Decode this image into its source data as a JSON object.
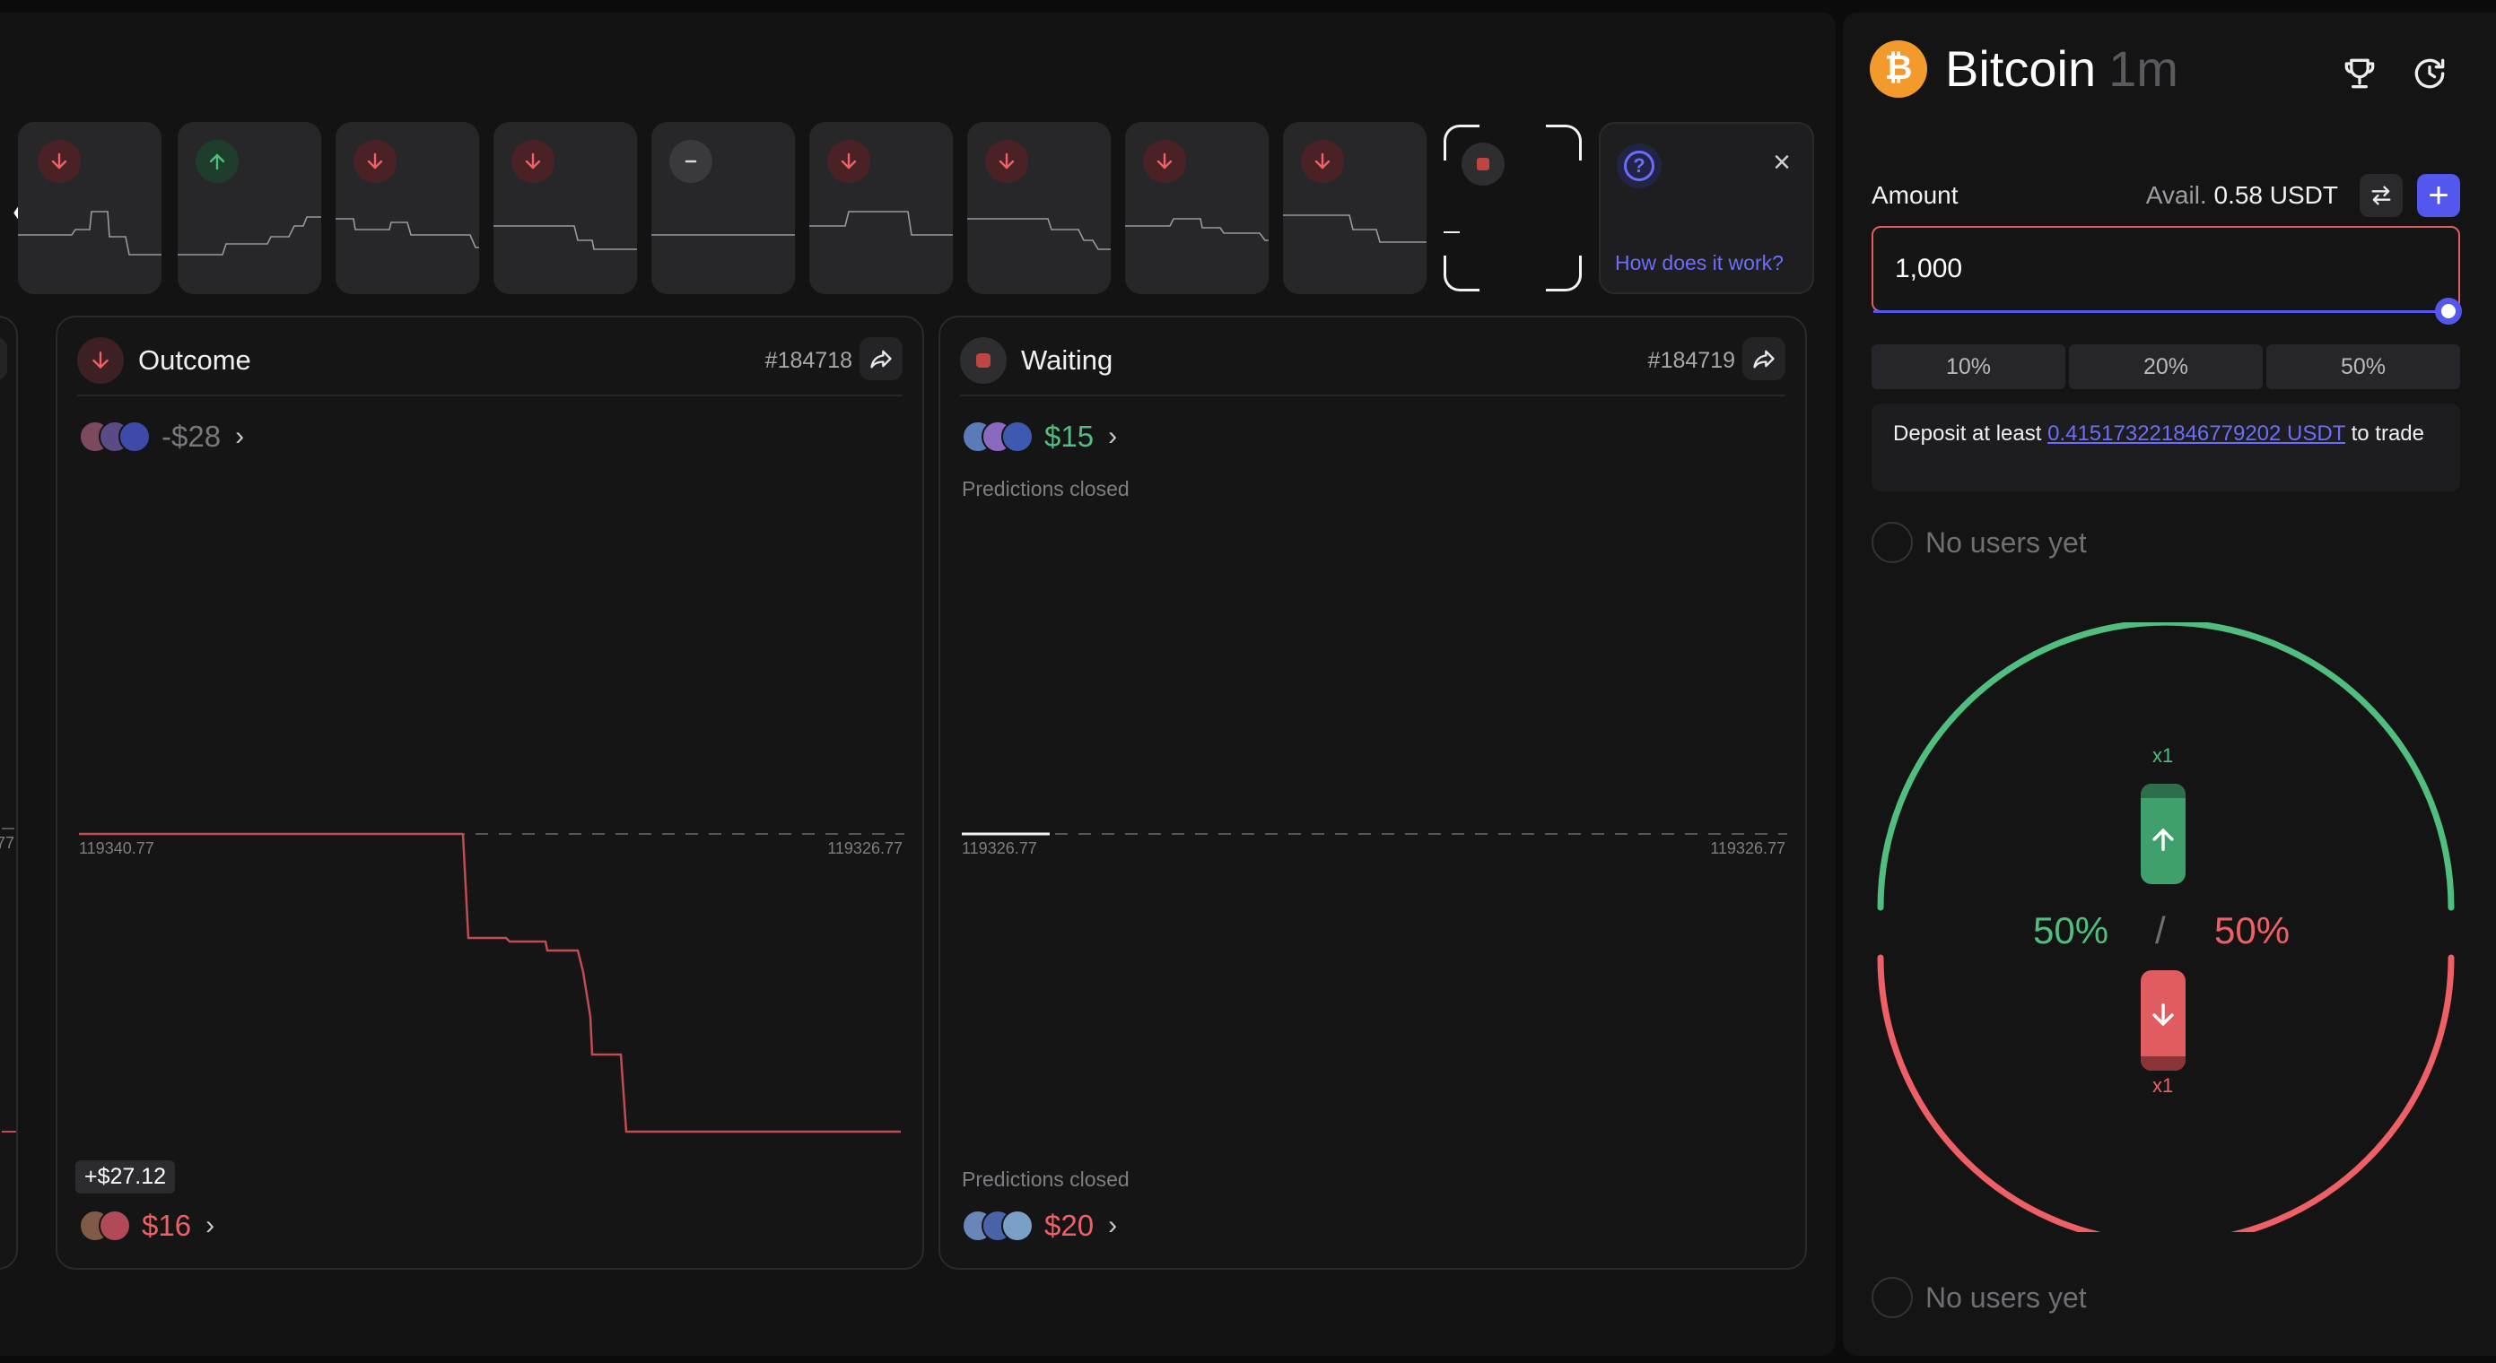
{
  "history": {
    "cards": [
      {
        "direction": "down",
        "color": "#ef5f66"
      },
      {
        "direction": "up",
        "color": "#4fbe7f"
      },
      {
        "direction": "down",
        "color": "#ef5f66"
      },
      {
        "direction": "down",
        "color": "#ef5f66"
      },
      {
        "direction": "flat",
        "color": "#d9d9dc"
      },
      {
        "direction": "down",
        "color": "#ef5f66"
      },
      {
        "direction": "down",
        "color": "#ef5f66"
      },
      {
        "direction": "down",
        "color": "#ef5f66"
      },
      {
        "direction": "down",
        "color": "#ef5f66"
      },
      {
        "direction": "current",
        "color": "#c04444"
      }
    ],
    "help_link": "How does it work?"
  },
  "rounds": [
    {
      "status": "Outcome",
      "id": "#184718",
      "top_pool": "-$28",
      "left_price": "119340.77",
      "right_price": "119326.77",
      "delta": "+$27.12",
      "bottom_pool": "$16",
      "edge_price": "77"
    },
    {
      "status": "Waiting",
      "id": "#184719",
      "top_pool": "$15",
      "top_note": "Predictions closed",
      "left_price": "119326.77",
      "right_price": "119326.77",
      "bottom_note": "Predictions closed",
      "bottom_pool": "$20"
    }
  ],
  "sidebar": {
    "asset_name": "Bitcoin",
    "timeframe": "1m",
    "btc_symbol": "₿",
    "amount_label": "Amount",
    "avail_label": "Avail.",
    "avail_value": "0.58 USDT",
    "amount_value": "1,000",
    "percent_options": [
      "10%",
      "20%",
      "50%"
    ],
    "deposit_prefix": "Deposit at least",
    "deposit_amount": "0.415173221846779202 USDT",
    "deposit_suffix": "to trade",
    "no_users_top": "No users yet",
    "no_users_bottom": "No users yet",
    "up_multiplier": "x1",
    "down_multiplier": "x1",
    "up_percent": "50%",
    "separator": "/",
    "down_percent": "50%",
    "colors": {
      "up": "#4fbe7f",
      "down": "#ef5f66",
      "accent": "#5457ee"
    }
  }
}
